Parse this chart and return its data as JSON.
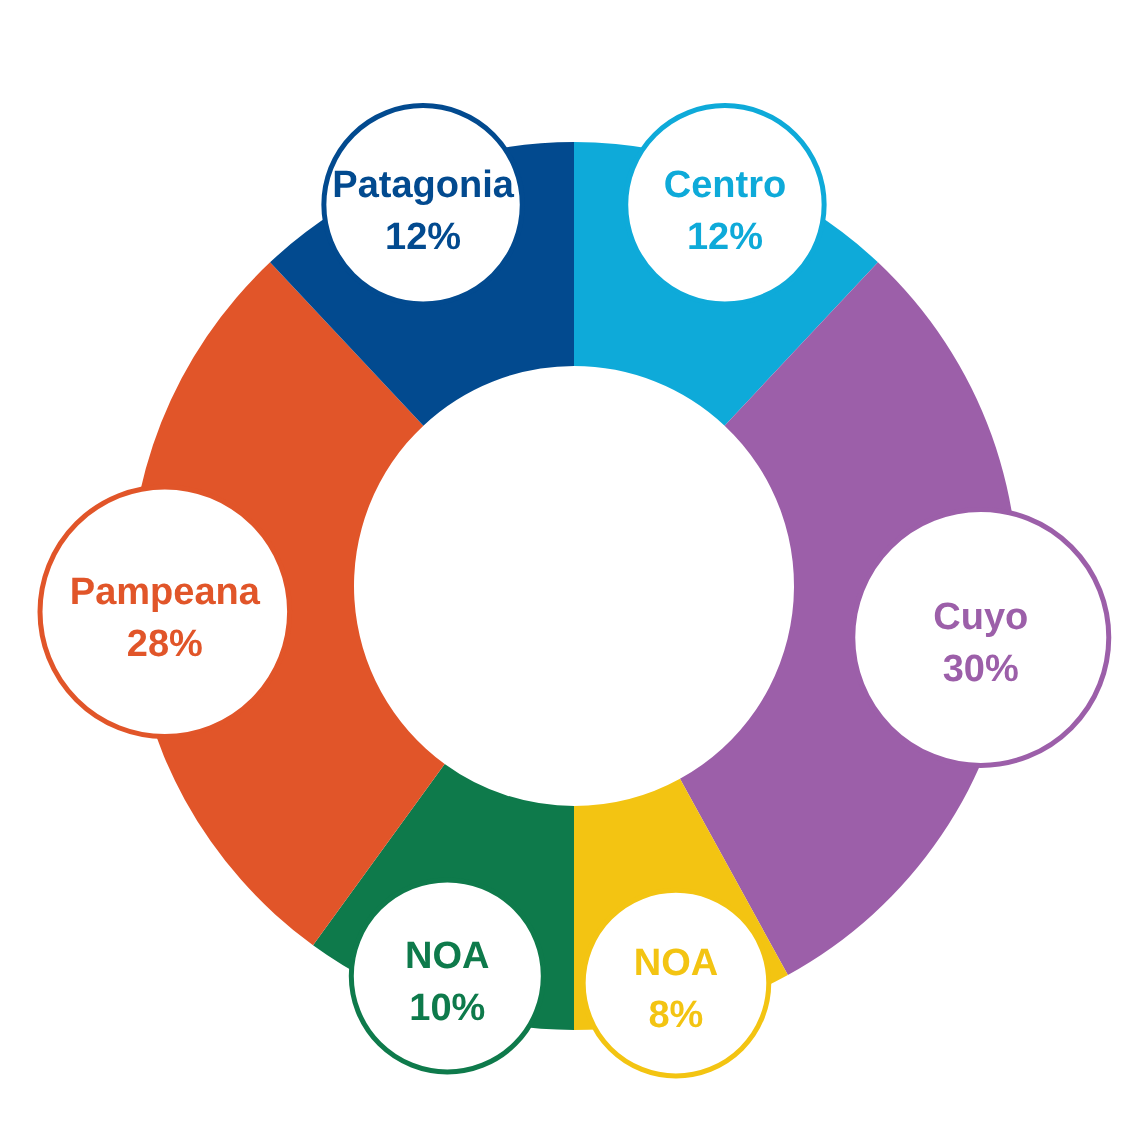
{
  "chart_data": {
    "type": "donut",
    "categories": [
      "Centro",
      "Cuyo",
      "NOA",
      "NOA",
      "Pampeana",
      "Patagonia"
    ],
    "values": [
      12,
      30,
      8,
      10,
      28,
      12
    ],
    "colors": [
      "#0eaad9",
      "#9c5fa9",
      "#f3c412",
      "#0e7a4b",
      "#e15529",
      "#024a8f"
    ],
    "value_labels": [
      "12%",
      "30%",
      "8%",
      "10%",
      "28%",
      "12%"
    ]
  }
}
